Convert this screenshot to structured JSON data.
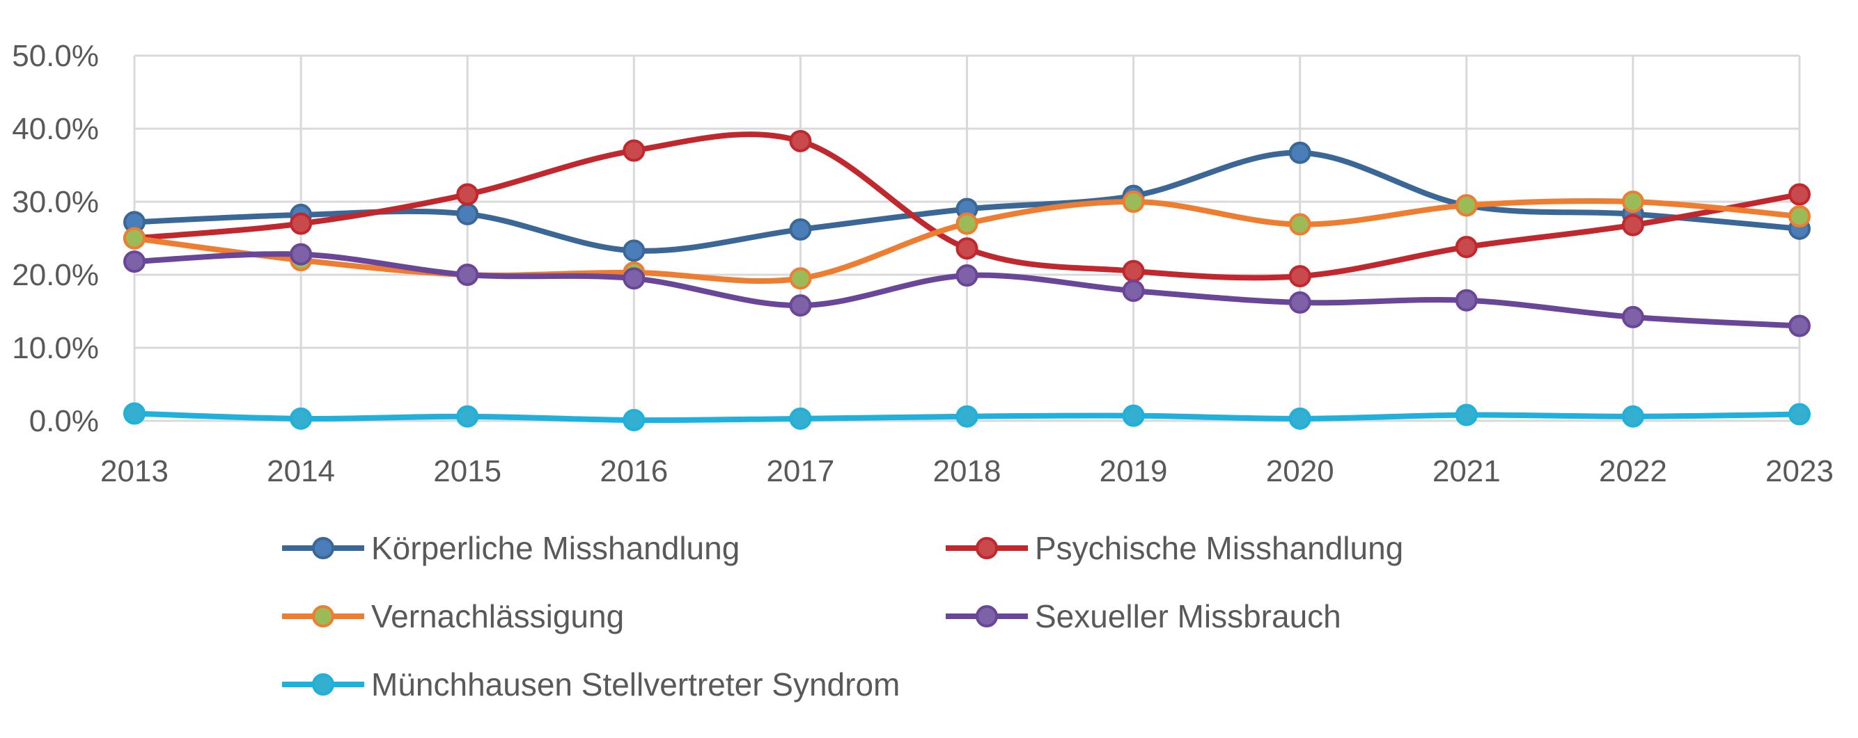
{
  "chart_data": {
    "type": "line",
    "title": "",
    "xlabel": "",
    "ylabel": "",
    "x": [
      "2013",
      "2014",
      "2015",
      "2016",
      "2017",
      "2018",
      "2019",
      "2020",
      "2021",
      "2022",
      "2023"
    ],
    "ylim": [
      0,
      50
    ],
    "y_ticks": [
      "0.0%",
      "10.0%",
      "20.0%",
      "30.0%",
      "40.0%",
      "50.0%"
    ],
    "grid": true,
    "legend_position": "bottom",
    "series": [
      {
        "name": "Körperliche Misshandlung",
        "line_color": "#3A6796",
        "marker_color": "#4A7EB9",
        "values": [
          27.2,
          28.2,
          28.3,
          23.3,
          26.2,
          29.0,
          30.8,
          36.7,
          29.5,
          28.3,
          26.3
        ]
      },
      {
        "name": "Psychische Misshandlung",
        "line_color": "#C0282D",
        "marker_color": "#C84A4D",
        "values": [
          25.0,
          27.0,
          31.0,
          37.0,
          38.3,
          23.6,
          20.5,
          19.8,
          23.8,
          26.8,
          31.0
        ]
      },
      {
        "name": "Vernachlässigung",
        "line_color": "#ED7D31",
        "marker_color": "#9BBB59",
        "values": [
          25.0,
          22.0,
          20.0,
          20.3,
          19.5,
          27.0,
          30.0,
          26.9,
          29.5,
          30.0,
          28.0
        ]
      },
      {
        "name": "Sexueller Missbrauch",
        "line_color": "#6A4698",
        "marker_color": "#7E62A7",
        "values": [
          21.8,
          22.8,
          20.0,
          19.5,
          15.8,
          19.9,
          17.8,
          16.2,
          16.5,
          14.2,
          13.0
        ]
      },
      {
        "name": "Münchhausen Stellvertreter Syndrom",
        "line_color": "#1FB0DB",
        "marker_color": "#34AFCF",
        "values": [
          1.0,
          0.3,
          0.6,
          0.1,
          0.3,
          0.6,
          0.7,
          0.3,
          0.8,
          0.6,
          0.9
        ]
      }
    ]
  }
}
